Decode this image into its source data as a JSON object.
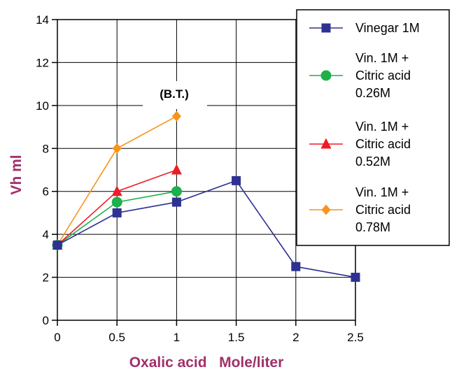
{
  "chart_data": {
    "type": "line",
    "title": "",
    "xlabel": "Oxalic acid   Mole/liter",
    "ylabel": "Vh ml",
    "xlim": [
      0,
      2.5
    ],
    "ylim": [
      0,
      14
    ],
    "x_ticks": [
      "0",
      "0.5",
      "1",
      "1.5",
      "2",
      "2.5"
    ],
    "y_ticks": [
      "0",
      "2",
      "4",
      "6",
      "8",
      "10",
      "12",
      "14"
    ],
    "grid": true,
    "legend_position": "top-right",
    "annotation": "(B.T.)",
    "label_color": "#A0306A",
    "series": [
      {
        "name": "Vinegar 1M",
        "name_lines": [
          "Vinegar 1M"
        ],
        "marker": "square",
        "color": "#2E3192",
        "x": [
          0,
          0.5,
          1,
          1.5,
          2,
          2.5
        ],
        "y": [
          3.5,
          5.0,
          5.5,
          6.5,
          2.5,
          2.0
        ]
      },
      {
        "name": "Vin. 1M + Citric acid 0.26M",
        "name_lines": [
          "Vin. 1M +",
          "Citric acid",
          "0.26M"
        ],
        "marker": "circle",
        "color": "#1DB04B",
        "x": [
          0,
          0.5,
          1
        ],
        "y": [
          3.5,
          5.5,
          6.0
        ]
      },
      {
        "name": "Vin. 1M + Citric acid 0.52M",
        "name_lines": [
          "Vin. 1M +",
          "Citric acid",
          "0.52M"
        ],
        "marker": "triangle",
        "color": "#EE1C25",
        "x": [
          0,
          0.5,
          1
        ],
        "y": [
          3.5,
          6.0,
          7.0
        ]
      },
      {
        "name": "Vin. 1M + Citric acid 0.78M",
        "name_lines": [
          "Vin. 1M +",
          "Citric acid",
          "0.78M"
        ],
        "marker": "diamond",
        "color": "#F7941D",
        "x": [
          0,
          0.5,
          1
        ],
        "y": [
          3.5,
          8.0,
          9.5
        ]
      }
    ]
  }
}
